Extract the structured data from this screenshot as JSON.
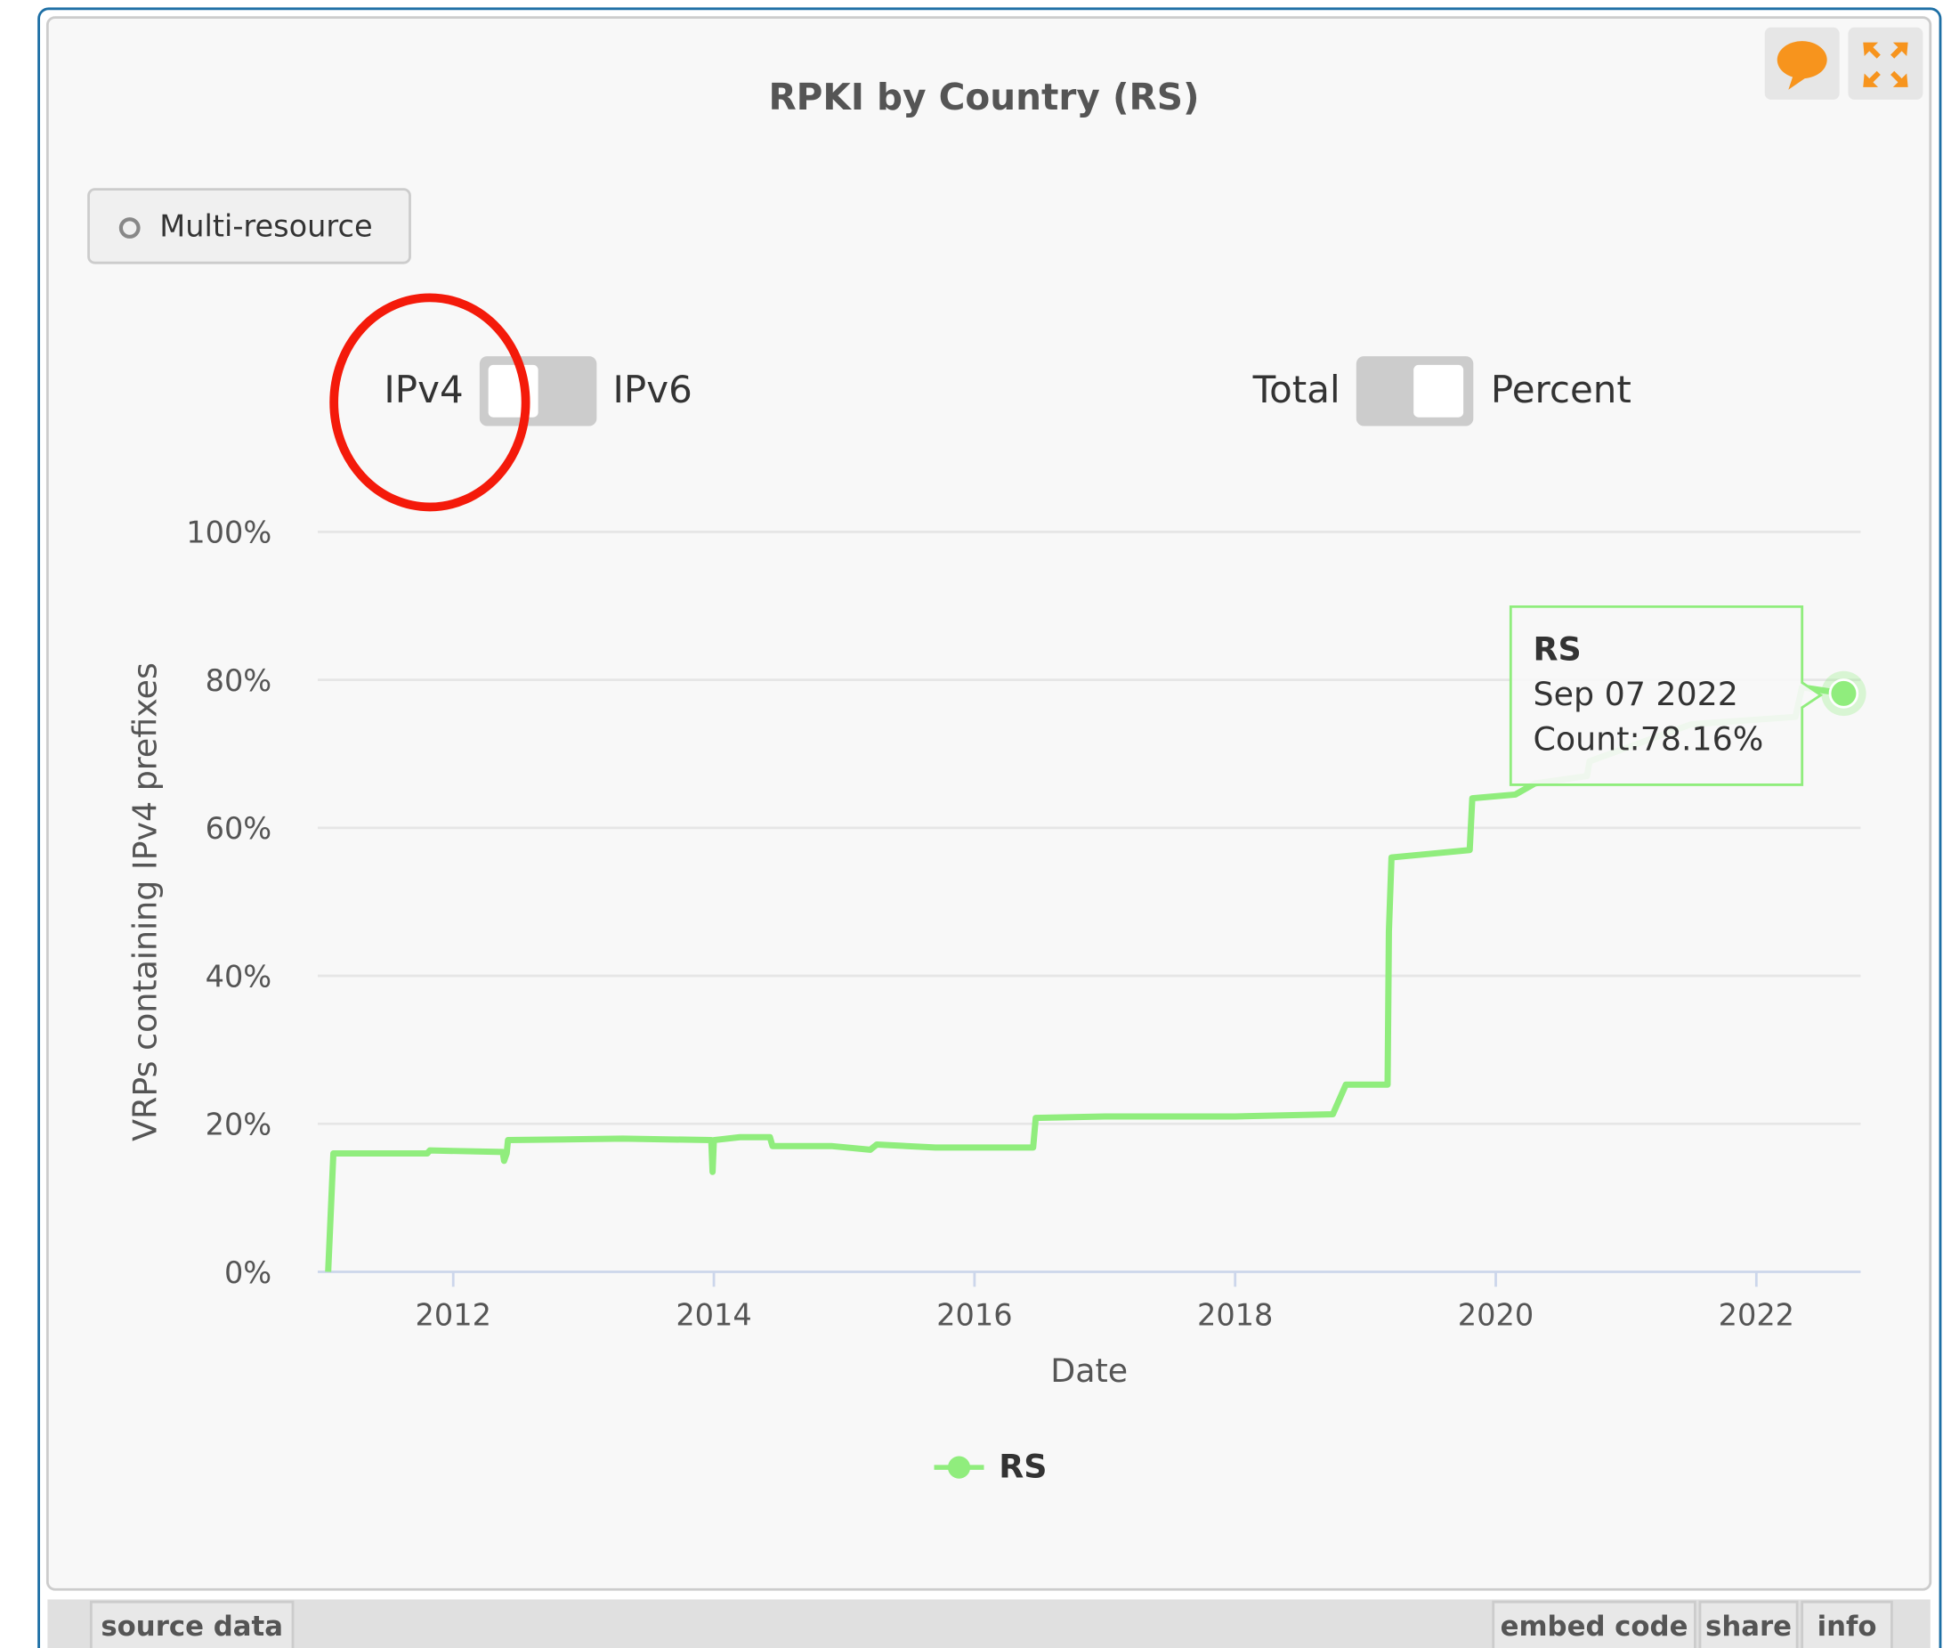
{
  "widget_title_buttons": [],
  "multi_resource": "Multi-resource",
  "toggle_ip": {
    "left": "IPv4",
    "right": "IPv6"
  },
  "toggle_mode": {
    "left": "Total",
    "right": "Percent"
  },
  "chart_data": {
    "type": "line",
    "title": "RPKI by Country (RS)",
    "x_label": "Date",
    "y_label": "VRPs containing IPv4 prefixes",
    "xlim": [
      2010.96,
      2022.8
    ],
    "xticks": [
      2012,
      2014,
      2016,
      2018,
      2020,
      2022
    ],
    "ylim": [
      0,
      100
    ],
    "yticks": [
      {
        "value": 0,
        "label": "0%"
      },
      {
        "value": 20,
        "label": "20%"
      },
      {
        "value": 40,
        "label": "40%"
      },
      {
        "value": 60,
        "label": "60%"
      },
      {
        "value": 80,
        "label": "80%"
      },
      {
        "value": 100,
        "label": "100%"
      }
    ],
    "grid": true,
    "legend": "bottom",
    "series": [
      {
        "name": "RS",
        "color": "#90ed7d",
        "x": [
          2011.04,
          2011.08,
          2011.1,
          2011.8,
          2011.82,
          2012.38,
          2012.39,
          2012.41,
          2012.42,
          2013.3,
          2013.98,
          2013.99,
          2014.0,
          2014.2,
          2014.43,
          2014.45,
          2014.9,
          2015.2,
          2015.25,
          2015.7,
          2016.45,
          2016.47,
          2017.0,
          2018.0,
          2018.75,
          2018.85,
          2019.17,
          2019.18,
          2019.2,
          2019.5,
          2019.8,
          2019.82,
          2020.15,
          2020.3,
          2020.7,
          2020.72,
          2021.5,
          2022.3,
          2022.35,
          2022.67
        ],
        "values": [
          0,
          16,
          16,
          16,
          16.4,
          16.2,
          15,
          16,
          17.8,
          18,
          17.8,
          13.5,
          17.8,
          18.2,
          18.2,
          17,
          17,
          16.5,
          17.2,
          16.8,
          16.8,
          20.8,
          21,
          21,
          21.3,
          25.3,
          25.3,
          46,
          56,
          56.5,
          57,
          64,
          64.5,
          66,
          67,
          69,
          74,
          75,
          79,
          78.16
        ]
      }
    ],
    "tooltip": {
      "title": "RS",
      "date": "Sep 07 2022",
      "text": "Count:78.16%"
    }
  },
  "footer": {
    "left": [
      "source data"
    ],
    "right": [
      "embed code",
      "share",
      "info"
    ]
  }
}
